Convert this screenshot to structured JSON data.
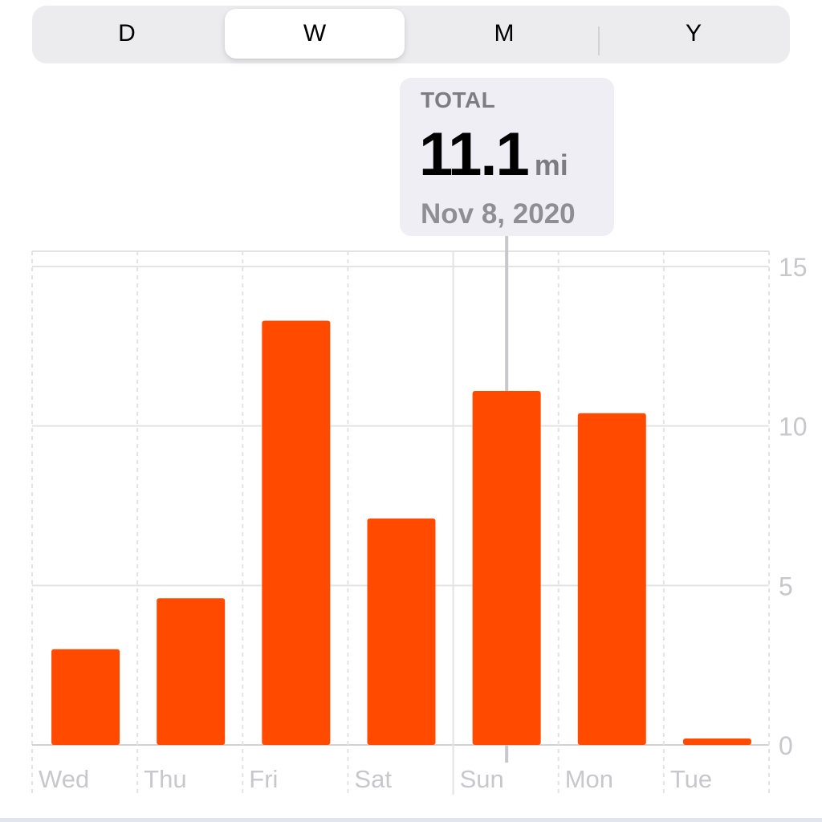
{
  "segments": [
    {
      "label": "D"
    },
    {
      "label": "W",
      "selected": true
    },
    {
      "label": "M"
    },
    {
      "label": "Y"
    }
  ],
  "tooltip": {
    "label": "TOTAL",
    "value": "11.1",
    "unit": "mi",
    "date": "Nov 8, 2020"
  },
  "colors": {
    "bar": "#ff4a00",
    "grid": "#e3e3e6",
    "axis_text": "#c7c7cc",
    "selection_line": "#c7c7cc",
    "tooltip_bg": "#eeeef4"
  },
  "chart_data": {
    "type": "bar",
    "categories": [
      "Wed",
      "Thu",
      "Fri",
      "Sat",
      "Sun",
      "Mon",
      "Tue"
    ],
    "values": [
      3.0,
      4.6,
      13.3,
      7.1,
      11.1,
      10.4,
      0.2
    ],
    "yticks": [
      "15",
      "10",
      "5",
      "0"
    ],
    "ylim": [
      0,
      15
    ],
    "grid": true,
    "y_axis_side": "right",
    "selected_category": "Sun"
  }
}
